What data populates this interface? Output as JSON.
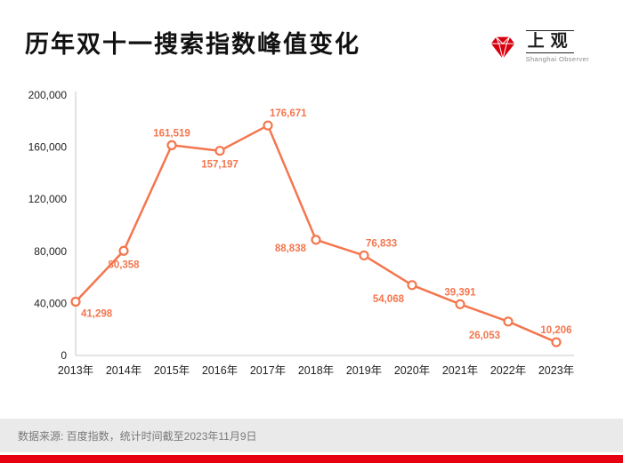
{
  "title": "历年双十一搜索指数峰值变化",
  "logo": {
    "name": "上观",
    "subtitle": "Shanghai Observer",
    "color": "#D6000F"
  },
  "footer": {
    "source_text": "数据来源: 百度指数，统计时间截至2023年11月9日"
  },
  "colors": {
    "line": "#F4764E",
    "data_label": "#F4764E",
    "axis": "#C8C8C8",
    "tick_text": "#222222",
    "footer_bg": "#EAEAEA",
    "footer_text": "#7A7A7A",
    "bottom_bar": "#E60012"
  },
  "chart_data": {
    "type": "line",
    "title": "历年双十一搜索指数峰值变化",
    "categories": [
      "2013年",
      "2014年",
      "2015年",
      "2016年",
      "2017年",
      "2018年",
      "2019年",
      "2020年",
      "2021年",
      "2022年",
      "2023年"
    ],
    "values": [
      41298,
      80358,
      161519,
      157197,
      176671,
      88838,
      76833,
      54068,
      39391,
      26053,
      10206
    ],
    "xlabel": "",
    "ylabel": "",
    "ylim": [
      0,
      200000
    ],
    "yticks": [
      0,
      40000,
      80000,
      120000,
      160000,
      200000
    ],
    "grid": false,
    "legend": "none",
    "marker": "open-circle",
    "label_positions": [
      "below-right",
      "below",
      "above",
      "below",
      "above-right",
      "left",
      "above-right",
      "below-left",
      "above",
      "below-left",
      "above"
    ]
  }
}
